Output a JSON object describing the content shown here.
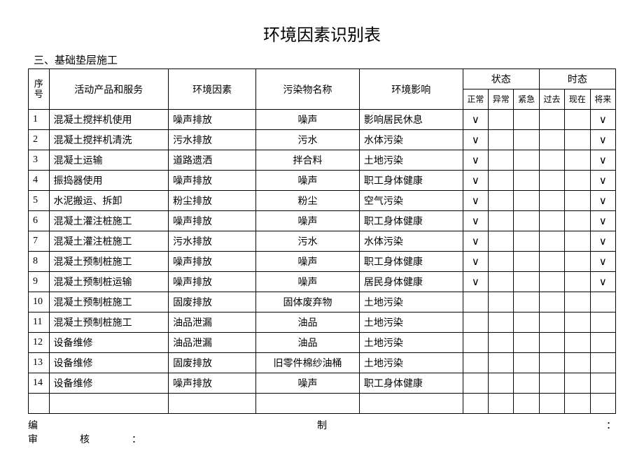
{
  "title": "环境因素识别表",
  "subtitle": "三、基础垫层施工",
  "headers": {
    "seq": "序号",
    "activity": "活动产品和服务",
    "env_factor": "环境因素",
    "pollutant": "污染物名称",
    "impact": "环境影响",
    "state_group": "状态",
    "tense_group": "时态",
    "state_normal": "正常",
    "state_abnormal": "异常",
    "state_emergency": "紧急",
    "tense_past": "过去",
    "tense_now": "现在",
    "tense_future": "将来"
  },
  "rows": [
    {
      "seq": "1",
      "activity": "混凝土搅拌机使用",
      "env_factor": "噪声排放",
      "pollutant": "噪声",
      "impact": "影响居民休息",
      "s1": "∨",
      "s2": "",
      "s3": "",
      "t1": "",
      "t2": "",
      "t3": "∨"
    },
    {
      "seq": "2",
      "activity": "混凝土搅拌机清洗",
      "env_factor": "污水排放",
      "pollutant": "污水",
      "impact": "水体污染",
      "s1": "∨",
      "s2": "",
      "s3": "",
      "t1": "",
      "t2": "",
      "t3": "∨"
    },
    {
      "seq": "3",
      "activity": "混凝土运输",
      "env_factor": "道路遗洒",
      "pollutant": "拌合料",
      "impact": "土地污染",
      "s1": "∨",
      "s2": "",
      "s3": "",
      "t1": "",
      "t2": "",
      "t3": "∨"
    },
    {
      "seq": "4",
      "activity": "振捣器使用",
      "env_factor": "噪声排放",
      "pollutant": "噪声",
      "impact": "职工身体健康",
      "s1": "∨",
      "s2": "",
      "s3": "",
      "t1": "",
      "t2": "",
      "t3": "∨"
    },
    {
      "seq": "5",
      "activity": "水泥搬运、拆卸",
      "env_factor": "粉尘排放",
      "pollutant": "粉尘",
      "impact": "空气污染",
      "s1": "∨",
      "s2": "",
      "s3": "",
      "t1": "",
      "t2": "",
      "t3": "∨"
    },
    {
      "seq": "6",
      "activity": "混凝土灌注桩施工",
      "env_factor": "噪声排放",
      "pollutant": "噪声",
      "impact": "职工身体健康",
      "s1": "∨",
      "s2": "",
      "s3": "",
      "t1": "",
      "t2": "",
      "t3": "∨"
    },
    {
      "seq": "7",
      "activity": "混凝土灌注桩施工",
      "env_factor": "污水排放",
      "pollutant": "污水",
      "impact": "水体污染",
      "s1": "∨",
      "s2": "",
      "s3": "",
      "t1": "",
      "t2": "",
      "t3": "∨"
    },
    {
      "seq": "8",
      "activity": "混凝土预制桩施工",
      "env_factor": "噪声排放",
      "pollutant": "噪声",
      "impact": "职工身体健康",
      "s1": "∨",
      "s2": "",
      "s3": "",
      "t1": "",
      "t2": "",
      "t3": "∨"
    },
    {
      "seq": "9",
      "activity": "混凝土预制桩运输",
      "env_factor": "噪声排放",
      "pollutant": "噪声",
      "impact": "居民身体健康",
      "s1": "∨",
      "s2": "",
      "s3": "",
      "t1": "",
      "t2": "",
      "t3": "∨"
    },
    {
      "seq": "10",
      "activity": "混凝土预制桩施工",
      "env_factor": "固废排放",
      "pollutant": "固体废弃物",
      "impact": "土地污染",
      "s1": "",
      "s2": "",
      "s3": "",
      "t1": "",
      "t2": "",
      "t3": ""
    },
    {
      "seq": "11",
      "activity": "混凝土预制桩施工",
      "env_factor": "油品泄漏",
      "pollutant": "油品",
      "impact": "土地污染",
      "s1": "",
      "s2": "",
      "s3": "",
      "t1": "",
      "t2": "",
      "t3": ""
    },
    {
      "seq": "12",
      "activity": "设备维修",
      "env_factor": "油品泄漏",
      "pollutant": "油品",
      "impact": "土地污染",
      "s1": "",
      "s2": "",
      "s3": "",
      "t1": "",
      "t2": "",
      "t3": ""
    },
    {
      "seq": "13",
      "activity": "设备维修",
      "env_factor": "固废排放",
      "pollutant": "旧零件棉纱油桶",
      "impact": "土地污染",
      "s1": "",
      "s2": "",
      "s3": "",
      "t1": "",
      "t2": "",
      "t3": ""
    },
    {
      "seq": "14",
      "activity": "设备维修",
      "env_factor": "噪声排放",
      "pollutant": "噪声",
      "impact": "职工身体健康",
      "s1": "",
      "s2": "",
      "s3": "",
      "t1": "",
      "t2": "",
      "t3": ""
    }
  ],
  "footer": {
    "line1_left": "编",
    "line1_mid": "制",
    "line1_right": "：",
    "line2_left": "审",
    "line2_mid": "核",
    "line2_right": "："
  }
}
